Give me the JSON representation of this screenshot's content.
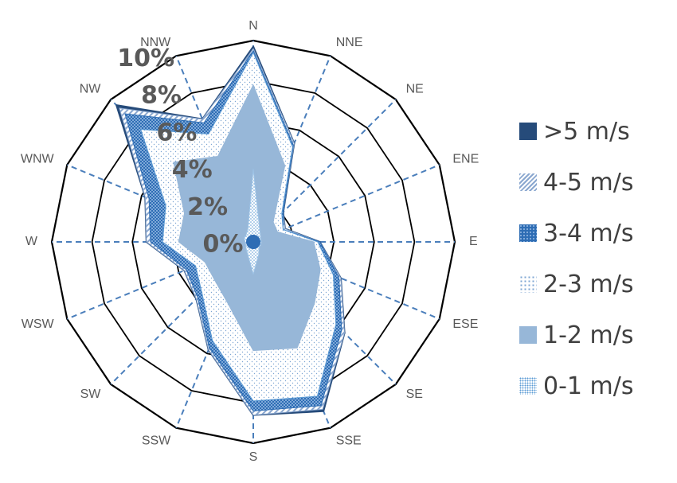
{
  "chart_data": {
    "type": "radar",
    "title": "",
    "categories": [
      "N",
      "NNE",
      "NE",
      "ENE",
      "E",
      "ESE",
      "SE",
      "SSE",
      "S",
      "SSW",
      "SW",
      "WSW",
      "W",
      "WNW",
      "NW",
      "NNW"
    ],
    "ticks": [
      "0%",
      "2%",
      "4%",
      "6%",
      "8%",
      "10%"
    ],
    "rmax": 10,
    "series": [
      {
        "name": "0-1 m/s",
        "color": "#9dc3e6",
        "pattern": "small-dots",
        "values": [
          3.6,
          0.8,
          0.5,
          0.4,
          0.4,
          0.4,
          0.4,
          0.7,
          1.6,
          0.7,
          0.5,
          0.4,
          0.4,
          0.5,
          0.5,
          0.7
        ]
      },
      {
        "name": "1-2 m/s",
        "color": "#97b7d8",
        "pattern": "solid",
        "values": [
          7.8,
          4.1,
          1.4,
          1.3,
          3.0,
          3.6,
          4.3,
          5.7,
          5.4,
          3.3,
          2.7,
          2.6,
          3.7,
          3.7,
          5.6,
          4.6
        ]
      },
      {
        "name": "2-3 m/s",
        "color": "#5b9bd5",
        "pattern": "sparse-dots",
        "values": [
          9.4,
          5.1,
          2.0,
          1.6,
          3.2,
          4.3,
          5.8,
          8.3,
          7.9,
          5.3,
          3.6,
          3.1,
          4.5,
          4.7,
          7.9,
          5.8
        ]
      },
      {
        "name": "3-4 m/s",
        "color": "#2e6db4",
        "pattern": "dense-checker",
        "values": [
          9.5,
          5.2,
          2.1,
          1.6,
          3.3,
          4.6,
          6.2,
          8.8,
          8.4,
          5.7,
          3.9,
          3.6,
          5.1,
          5.6,
          9.0,
          6.4
        ]
      },
      {
        "name": "4-5 m/s",
        "color": "#8aa7cf",
        "pattern": "diagonal",
        "values": [
          9.6,
          5.3,
          2.1,
          1.7,
          3.3,
          4.7,
          6.4,
          9.0,
          8.6,
          5.8,
          4.0,
          3.7,
          5.3,
          5.8,
          9.4,
          6.6
        ]
      },
      {
        "name": ">5 m/s",
        "color": "#264b7a",
        "pattern": "solid",
        "values": [
          9.7,
          5.3,
          2.1,
          1.7,
          3.3,
          4.7,
          6.4,
          9.1,
          8.6,
          5.8,
          4.0,
          3.7,
          5.3,
          5.8,
          9.6,
          6.6
        ]
      }
    ],
    "legend_position": "right"
  }
}
